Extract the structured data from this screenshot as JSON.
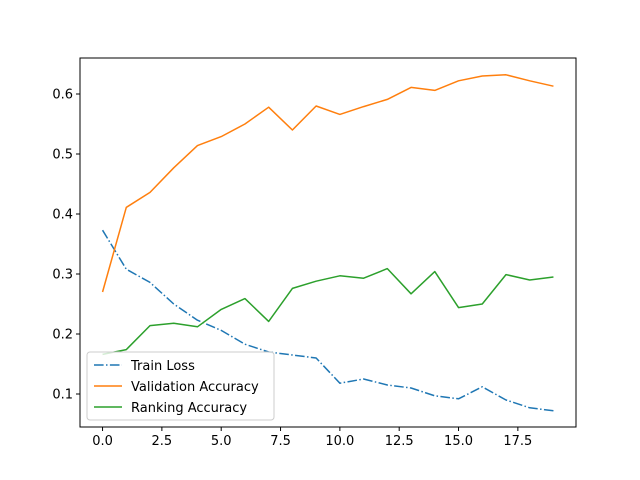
{
  "chart_data": {
    "type": "line",
    "title": "",
    "xlabel": "",
    "ylabel": "",
    "xlim": [
      -0.95,
      19.95
    ],
    "ylim": [
      0.045,
      0.66
    ],
    "grid": false,
    "legend_position": "lower-left",
    "x": [
      0,
      1,
      2,
      3,
      4,
      5,
      6,
      7,
      8,
      9,
      10,
      11,
      12,
      13,
      14,
      15,
      16,
      17,
      18,
      19
    ],
    "x_ticks": [
      0.0,
      2.5,
      5.0,
      7.5,
      10.0,
      12.5,
      15.0,
      17.5
    ],
    "x_tick_labels": [
      "0.0",
      "2.5",
      "5.0",
      "7.5",
      "10.0",
      "12.5",
      "15.0",
      "17.5"
    ],
    "y_ticks": [
      0.1,
      0.2,
      0.3,
      0.4,
      0.5,
      0.6
    ],
    "y_tick_labels": [
      "0.1",
      "0.2",
      "0.3",
      "0.4",
      "0.5",
      "0.6"
    ],
    "series": [
      {
        "name": "Train Loss",
        "color": "#1f77b4",
        "style": "dashdot",
        "values": [
          0.373,
          0.308,
          0.286,
          0.25,
          0.223,
          0.206,
          0.183,
          0.17,
          0.165,
          0.16,
          0.118,
          0.125,
          0.115,
          0.11,
          0.097,
          0.092,
          0.112,
          0.09,
          0.077,
          0.072
        ]
      },
      {
        "name": "Validation Accuracy",
        "color": "#ff7f0e",
        "style": "solid",
        "values": [
          0.27,
          0.411,
          0.436,
          0.477,
          0.514,
          0.529,
          0.55,
          0.578,
          0.54,
          0.58,
          0.566,
          0.579,
          0.591,
          0.611,
          0.606,
          0.622,
          0.63,
          0.632,
          0.622,
          0.613
        ]
      },
      {
        "name": "Ranking Accuracy",
        "color": "#2ca02c",
        "style": "solid",
        "values": [
          0.166,
          0.174,
          0.214,
          0.218,
          0.212,
          0.241,
          0.259,
          0.221,
          0.276,
          0.288,
          0.297,
          0.293,
          0.309,
          0.267,
          0.304,
          0.244,
          0.25,
          0.299,
          0.29,
          0.295
        ]
      }
    ]
  }
}
